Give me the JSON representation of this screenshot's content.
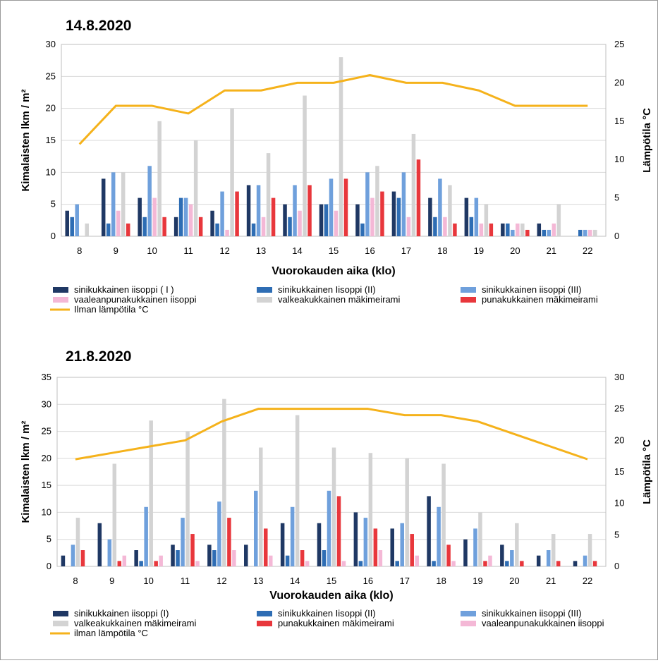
{
  "charts": [
    {
      "title": "14.8.2020",
      "xlabel": "Vuorokauden aika (klo)",
      "ylabel": "Kimalaisten lkm / m²",
      "y2label": "Lämpötila °C",
      "chart_data": {
        "type": "bar",
        "categories": [
          "8",
          "9",
          "10",
          "11",
          "12",
          "13",
          "14",
          "15",
          "16",
          "17",
          "18",
          "19",
          "20",
          "21",
          "22"
        ],
        "ylim": [
          0,
          30
        ],
        "yticks": [
          0,
          5,
          10,
          15,
          20,
          25,
          30
        ],
        "y2lim": [
          0,
          25
        ],
        "y2ticks": [
          0,
          5,
          10,
          15,
          20,
          25
        ],
        "grid": true,
        "legend_placement": "bottom",
        "series": [
          {
            "name": "sinikukkainen iisoppi ( I )",
            "color": "#1f3864",
            "values": [
              4,
              9,
              6,
              3,
              4,
              8,
              5,
              5,
              5,
              7,
              6,
              6,
              2,
              2,
              0
            ]
          },
          {
            "name": "sinikukkainen Iisoppi (II)",
            "color": "#2e6db4",
            "values": [
              3,
              2,
              3,
              6,
              2,
              2,
              3,
              5,
              2,
              6,
              3,
              3,
              2,
              1,
              1
            ]
          },
          {
            "name": "sinikukkainen iisoppi (III)",
            "color": "#6fa0dc",
            "values": [
              5,
              10,
              11,
              6,
              7,
              8,
              8,
              9,
              10,
              10,
              9,
              6,
              1,
              1,
              1
            ]
          },
          {
            "name": "vaaleanpunakukkainen iisoppi",
            "color": "#f4b8d6",
            "values": [
              0,
              4,
              6,
              5,
              1,
              3,
              4,
              4,
              6,
              3,
              3,
              2,
              2,
              2,
              1
            ]
          },
          {
            "name": "valkeakukkainen mäkimeirami",
            "color": "#d3d3d3",
            "values": [
              2,
              10,
              18,
              15,
              20,
              13,
              22,
              28,
              11,
              16,
              8,
              5,
              2,
              5,
              1
            ]
          },
          {
            "name": "punakukkainen mäkimeirami",
            "color": "#e8373c",
            "values": [
              0,
              2,
              3,
              3,
              7,
              6,
              8,
              9,
              7,
              12,
              2,
              2,
              1,
              0,
              0
            ]
          }
        ],
        "line": {
          "name": "Ilman lämpötila °C",
          "color": "#f5b21b",
          "axis": "right",
          "values": [
            12,
            17,
            17,
            16,
            19,
            19,
            20,
            20,
            21,
            20,
            20,
            19,
            17,
            17,
            17
          ]
        }
      }
    },
    {
      "title": "21.8.2020",
      "xlabel": "Vuorokauden aika (klo)",
      "ylabel": "Kimalaisten lkm / m²",
      "y2label": "Lämpötila °C",
      "chart_data": {
        "type": "bar",
        "categories": [
          "8",
          "9",
          "10",
          "11",
          "12",
          "13",
          "14",
          "15",
          "16",
          "17",
          "18",
          "19",
          "20",
          "21",
          "22"
        ],
        "ylim": [
          0,
          35
        ],
        "yticks": [
          0,
          5,
          10,
          15,
          20,
          25,
          30,
          35
        ],
        "y2lim": [
          0,
          30
        ],
        "y2ticks": [
          0,
          5,
          10,
          15,
          20,
          25,
          30
        ],
        "grid": true,
        "legend_placement": "bottom",
        "series": [
          {
            "name": "sinikukkainen iisoppi (I)",
            "color": "#1f3864",
            "values": [
              2,
              8,
              3,
              4,
              4,
              4,
              8,
              8,
              10,
              7,
              13,
              5,
              4,
              2,
              1
            ]
          },
          {
            "name": "sinikukkainen Iisoppi (II)",
            "color": "#2e6db4",
            "values": [
              0,
              0,
              1,
              3,
              3,
              0,
              2,
              3,
              1,
              1,
              1,
              0,
              1,
              0,
              0
            ]
          },
          {
            "name": "sinikukkainen iisoppi (III)",
            "color": "#6fa0dc",
            "values": [
              4,
              5,
              11,
              9,
              12,
              14,
              11,
              14,
              9,
              8,
              11,
              7,
              3,
              3,
              2
            ]
          },
          {
            "name": "valkeakukkainen mäkimeirami",
            "color": "#d3d3d3",
            "values": [
              9,
              19,
              27,
              25,
              31,
              22,
              28,
              22,
              21,
              20,
              19,
              10,
              8,
              6,
              6
            ]
          },
          {
            "name": "punakukkainen mäkimeirami",
            "color": "#e8373c",
            "values": [
              3,
              1,
              1,
              6,
              9,
              7,
              3,
              13,
              7,
              6,
              4,
              1,
              1,
              1,
              1
            ]
          },
          {
            "name": "vaaleanpunakukkainen iisoppi",
            "color": "#f4b8d6",
            "values": [
              0,
              2,
              2,
              1,
              3,
              2,
              1,
              1,
              3,
              2,
              1,
              2,
              0,
              0,
              0
            ]
          }
        ],
        "line": {
          "name": "ilman lämpötila °C",
          "color": "#f5b21b",
          "axis": "right",
          "values": [
            17,
            18,
            19,
            20,
            23,
            25,
            25,
            25,
            25,
            24,
            24,
            23,
            21,
            19,
            17
          ]
        }
      }
    }
  ]
}
